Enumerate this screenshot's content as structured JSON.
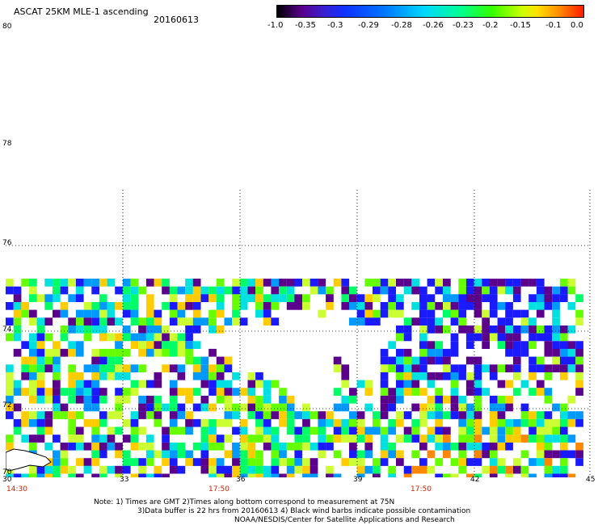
{
  "header": {
    "title": "ASCAT 25KM MLE-1 ascending",
    "date": "20160613"
  },
  "colorbar": {
    "labels": [
      "-1.0",
      "-0.35",
      "-0.3",
      "-0.29",
      "-0.28",
      "-0.26",
      "-0.23",
      "-0.2",
      "-0.15",
      "-0.1",
      "0.0"
    ]
  },
  "axes": {
    "latitude_labels": [
      "80",
      "78",
      "76",
      "74",
      "72",
      "70"
    ],
    "longitude_labels": [
      "30",
      "33",
      "36",
      "39",
      "42",
      "45"
    ],
    "time_labels": [
      "14:30",
      "17:50",
      "17:50"
    ]
  },
  "notes": {
    "line1": "Note: 1) Times are GMT 2)Times along bottom correspond to measurement at 75N",
    "line2": "3)Data buffer is 22 hrs from 20160613 4) Black wind barbs indicate possible contamination",
    "line3": "NOAA/NESDIS/Center for Satellite Applications and Research"
  },
  "colors": {
    "palette": [
      "#5a008c",
      "#1a1aff",
      "#0099ff",
      "#00e0e0",
      "#00ff66",
      "#66ff00",
      "#ccff33",
      "#ffcc00",
      "#ff8800",
      "#ff2200"
    ],
    "time_label": "#cc2200"
  }
}
